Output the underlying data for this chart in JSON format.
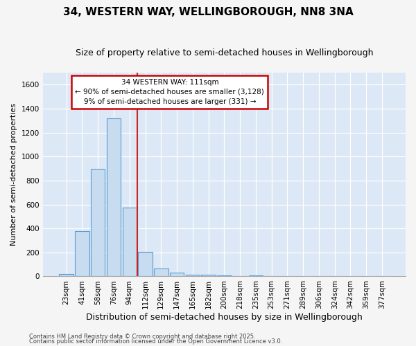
{
  "title": "34, WESTERN WAY, WELLINGBOROUGH, NN8 3NA",
  "subtitle": "Size of property relative to semi-detached houses in Wellingborough",
  "xlabel": "Distribution of semi-detached houses by size in Wellingborough",
  "ylabel": "Number of semi-detached properties",
  "categories": [
    "23sqm",
    "41sqm",
    "58sqm",
    "76sqm",
    "94sqm",
    "112sqm",
    "129sqm",
    "147sqm",
    "165sqm",
    "182sqm",
    "200sqm",
    "218sqm",
    "235sqm",
    "253sqm",
    "271sqm",
    "289sqm",
    "306sqm",
    "324sqm",
    "342sqm",
    "359sqm",
    "377sqm"
  ],
  "values": [
    20,
    380,
    900,
    1320,
    575,
    205,
    65,
    30,
    15,
    15,
    10,
    0,
    10,
    0,
    0,
    0,
    0,
    0,
    0,
    0,
    0
  ],
  "bar_color": "#c8dcf0",
  "bar_edge_color": "#5b9bd5",
  "vline_color": "#cc2222",
  "vline_index": 4.5,
  "annotation_title": "34 WESTERN WAY: 111sqm",
  "annotation_line1": "← 90% of semi-detached houses are smaller (3,128)",
  "annotation_line2": "9% of semi-detached houses are larger (331) →",
  "annotation_box_color": "#ffffff",
  "annotation_box_edge": "#cc0000",
  "ylim": [
    0,
    1700
  ],
  "yticks": [
    0,
    200,
    400,
    600,
    800,
    1000,
    1200,
    1400,
    1600
  ],
  "bg_color": "#dce8f5",
  "grid_color": "#ffffff",
  "fig_bg_color": "#f5f5f5",
  "footer_line1": "Contains HM Land Registry data © Crown copyright and database right 2025.",
  "footer_line2": "Contains public sector information licensed under the Open Government Licence v3.0.",
  "title_fontsize": 11,
  "subtitle_fontsize": 9,
  "xlabel_fontsize": 9,
  "ylabel_fontsize": 8,
  "tick_fontsize": 7.5,
  "annot_fontsize": 7.5,
  "footer_fontsize": 6
}
